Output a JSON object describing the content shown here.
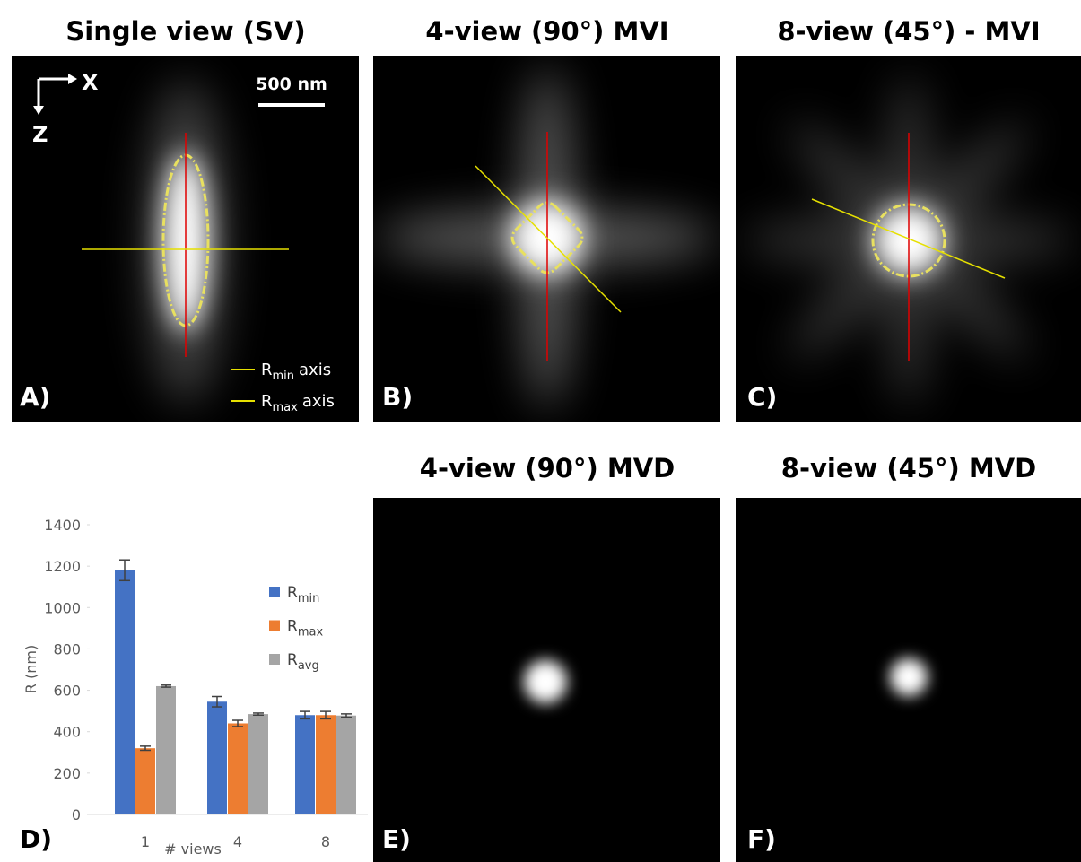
{
  "panels": [
    {
      "title": "Single view (SV)",
      "label": "A)"
    },
    {
      "title": "4-view (90°) MVI",
      "label": "B)"
    },
    {
      "title": "8-view (45°) - MVI",
      "label": "C)"
    },
    {
      "title": "4-view (90°) MVD",
      "label": "E)"
    },
    {
      "title": "8-view (45°) MVD",
      "label": "F)"
    }
  ],
  "orientation": {
    "x": "X",
    "z": "Z",
    "scale_bar": "500 nm"
  },
  "axis_legend": [
    {
      "symbol": "R",
      "subscript": "min",
      "text": "axis",
      "color": "#e6e000"
    },
    {
      "symbol": "R",
      "subscript": "max",
      "text": "axis",
      "color": "#e00000"
    }
  ],
  "chart_data": {
    "type": "bar",
    "label": "D)",
    "ylabel": "R (nm)",
    "xlabel": "# views",
    "categories": [
      "1",
      "4",
      "8"
    ],
    "ylim": [
      0,
      1400
    ],
    "yticks": [
      0,
      200,
      400,
      600,
      800,
      1000,
      1200,
      1400
    ],
    "series": [
      {
        "name": "R",
        "subscript": "min",
        "color": "#4472c4",
        "values": [
          1180,
          545,
          480
        ],
        "errors": [
          50,
          25,
          18
        ]
      },
      {
        "name": "R",
        "subscript": "max",
        "color": "#ed7d31",
        "values": [
          320,
          440,
          480
        ],
        "errors": [
          10,
          15,
          18
        ]
      },
      {
        "name": "R",
        "subscript": "avg",
        "color": "#a5a5a5",
        "values": [
          620,
          485,
          478
        ],
        "errors": [
          5,
          5,
          8
        ]
      }
    ]
  }
}
